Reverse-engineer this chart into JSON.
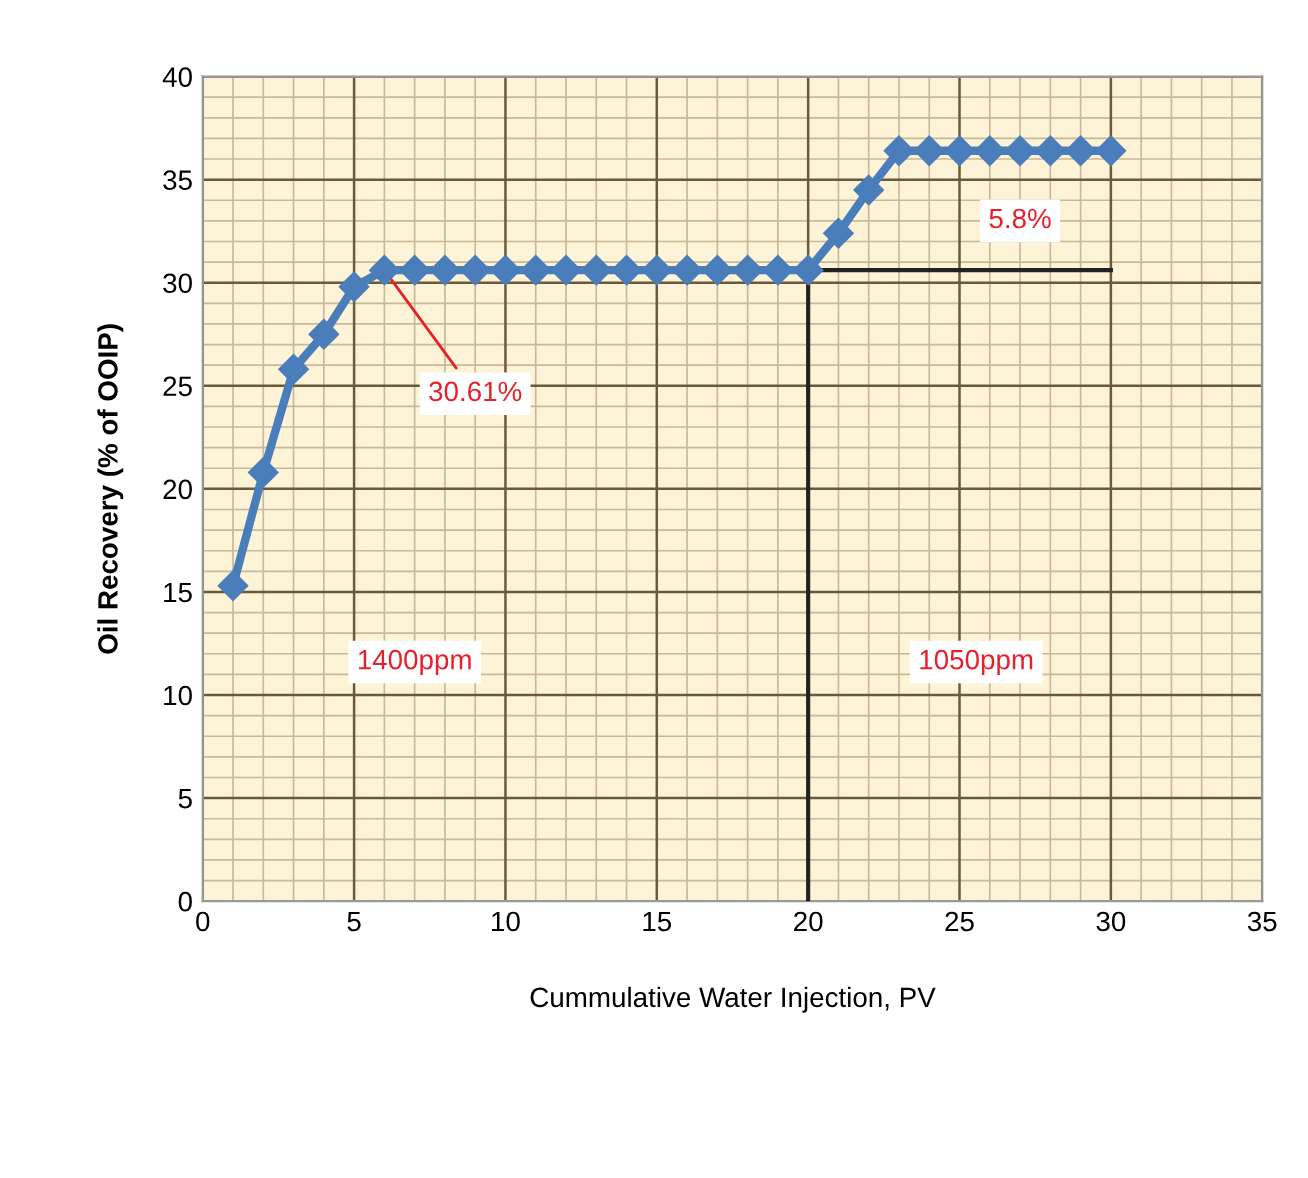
{
  "chart_data": {
    "type": "line",
    "xlabel": "Cummulative Water Injection, PV",
    "ylabel": "Oil Recovery (% of OOIP)",
    "xlim": [
      0,
      35
    ],
    "ylim": [
      0,
      40
    ],
    "xticks": [
      0,
      {
        "value": 1,
        "label": null
      },
      {
        "value": 2,
        "label": null
      },
      {
        "value": 3,
        "label": null
      },
      {
        "value": 4,
        "label": null
      },
      5,
      {
        "value": 6,
        "label": null
      },
      {
        "value": 7,
        "label": null
      },
      {
        "value": 8,
        "label": null
      },
      {
        "value": 9,
        "label": null
      },
      10,
      {
        "value": 11,
        "label": null
      },
      {
        "value": 12,
        "label": null
      },
      {
        "value": 13,
        "label": null
      },
      {
        "value": 14,
        "label": null
      },
      15,
      {
        "value": 16,
        "label": null
      },
      {
        "value": 17,
        "label": null
      },
      {
        "value": 18,
        "label": null
      },
      {
        "value": 19,
        "label": null
      },
      20,
      {
        "value": 21,
        "label": null
      },
      {
        "value": 22,
        "label": null
      },
      {
        "value": 23,
        "label": null
      },
      {
        "value": 24,
        "label": null
      },
      25,
      {
        "value": 26,
        "label": null
      },
      {
        "value": 27,
        "label": null
      },
      {
        "value": 28,
        "label": null
      },
      {
        "value": 29,
        "label": null
      },
      30,
      {
        "value": 31,
        "label": null
      },
      {
        "value": 32,
        "label": null
      },
      {
        "value": 33,
        "label": null
      },
      {
        "value": 34,
        "label": null
      },
      35
    ],
    "yticks": [
      0,
      {
        "value": 1,
        "label": null
      },
      {
        "value": 2,
        "label": null
      },
      {
        "value": 3,
        "label": null
      },
      {
        "value": 4,
        "label": null
      },
      5,
      {
        "value": 6,
        "label": null
      },
      {
        "value": 7,
        "label": null
      },
      {
        "value": 8,
        "label": null
      },
      {
        "value": 9,
        "label": null
      },
      10,
      {
        "value": 11,
        "label": null
      },
      {
        "value": 12,
        "label": null
      },
      {
        "value": 13,
        "label": null
      },
      {
        "value": 14,
        "label": null
      },
      15,
      {
        "value": 16,
        "label": null
      },
      {
        "value": 17,
        "label": null
      },
      {
        "value": 18,
        "label": null
      },
      {
        "value": 19,
        "label": null
      },
      20,
      {
        "value": 21,
        "label": null
      },
      {
        "value": 22,
        "label": null
      },
      {
        "value": 23,
        "label": null
      },
      {
        "value": 24,
        "label": null
      },
      25,
      {
        "value": 26,
        "label": null
      },
      {
        "value": 27,
        "label": null
      },
      {
        "value": 28,
        "label": null
      },
      {
        "value": 29,
        "label": null
      },
      30,
      {
        "value": 31,
        "label": null
      },
      {
        "value": 32,
        "label": null
      },
      {
        "value": 33,
        "label": null
      },
      {
        "value": 34,
        "label": null
      },
      35,
      {
        "value": 36,
        "label": null
      },
      {
        "value": 37,
        "label": null
      },
      {
        "value": 38,
        "label": null
      },
      {
        "value": 39,
        "label": null
      },
      40
    ],
    "grid": true,
    "marker": "diamond",
    "line_style": "solid",
    "legend": false,
    "series": [
      {
        "color": "#4a7ebb",
        "x": [
          1,
          2,
          3,
          4,
          5,
          6,
          7,
          8,
          9,
          10,
          11,
          12,
          13,
          14,
          15,
          16,
          17,
          18,
          19,
          20,
          21,
          22,
          23,
          24,
          25,
          26,
          27,
          28,
          29,
          30
        ],
        "values": [
          15.3,
          20.8,
          25.8,
          27.5,
          29.8,
          30.61,
          30.61,
          30.61,
          30.61,
          30.61,
          30.61,
          30.61,
          30.61,
          30.61,
          30.61,
          30.61,
          30.61,
          30.61,
          30.61,
          30.61,
          32.4,
          34.5,
          36.4,
          36.4,
          36.4,
          36.4,
          36.4,
          36.4,
          36.4,
          36.4
        ]
      },
      {
        "type": "line",
        "color": "#222222",
        "marker": "none",
        "x": [
          20,
          20,
          30
        ],
        "values": [
          0,
          30.61,
          30.61
        ]
      }
    ],
    "annotations": [
      {
        "text": "30.61%",
        "x": 6,
        "y": 30.61
      },
      {
        "text": "5.8%",
        "x": 27,
        "y": 33
      },
      "1400ppm",
      "1050ppm"
    ]
  }
}
